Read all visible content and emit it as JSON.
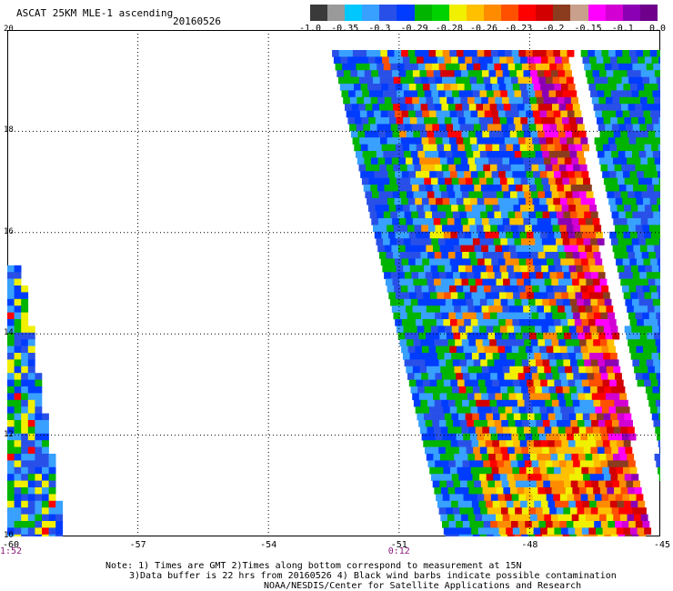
{
  "header": {
    "title": "ASCAT 25KM MLE-1 ascending",
    "date": "20160526"
  },
  "colorbar": {
    "tick_labels": [
      "-1.0",
      "-0.35",
      "-0.3",
      "-0.29",
      "-0.28",
      "-0.26",
      "-0.23",
      "-0.2",
      "-0.15",
      "-0.1",
      "0.0"
    ],
    "colors": [
      "#3a3a3a",
      "#9a9a9a",
      "#00c8ff",
      "#38a0ff",
      "#2850e8",
      "#003cff",
      "#00b400",
      "#00d200",
      "#f0f000",
      "#ffc000",
      "#ff8c00",
      "#ff5000",
      "#ff0000",
      "#d20000",
      "#8c3c1e",
      "#c8a08c",
      "#ff00ff",
      "#d200d2",
      "#8c00b4",
      "#6e008c"
    ]
  },
  "map": {
    "lat_range": [
      10,
      20
    ],
    "lon_range": [
      -60,
      -45
    ],
    "lat_ticks": [
      "20",
      "18",
      "16",
      "14",
      "12",
      "10"
    ],
    "lon_ticks": [
      "-60",
      "-57",
      "-54",
      "-51",
      "-48",
      "-45"
    ],
    "time_labels": [
      {
        "lon": "-60",
        "text": "1:52"
      },
      {
        "lon": "-51",
        "text": "0:12"
      }
    ],
    "grid": "dotted",
    "palette": [
      "#38a0ff",
      "#2850e8",
      "#003cff",
      "#00b400",
      "#f0f000",
      "#ffc000",
      "#ff8c00",
      "#ff5000",
      "#ff0000",
      "#d20000",
      "#8c3c1e",
      "#ff00ff",
      "#d200d2",
      "#8c00b4"
    ]
  },
  "footer": {
    "line1": "Note: 1) Times are GMT 2)Times along bottom correspond to measurement at 15N",
    "line2": "3)Data buffer is 22 hrs from 20160526 4) Black wind barbs indicate possible contamination",
    "line3": "NOAA/NESDIS/Center for Satellite Applications and Research"
  }
}
